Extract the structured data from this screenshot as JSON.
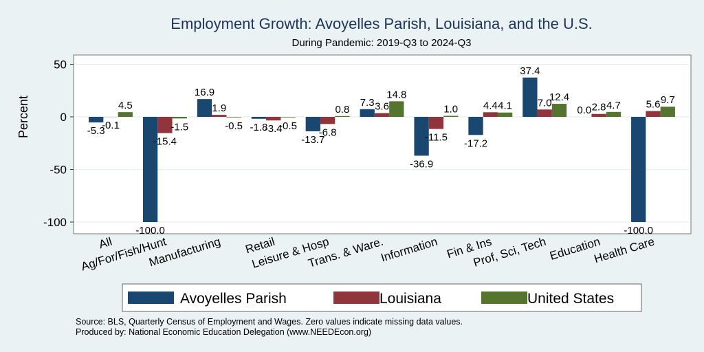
{
  "chart_data": {
    "type": "bar",
    "title": "Employment Growth: Avoyelles Parish, Louisiana, and the U.S.",
    "subtitle": "During Pandemic: 2019-Q3 to 2024-Q3",
    "xlabel": "",
    "ylabel": "Percent",
    "ylim": [
      -110,
      60
    ],
    "yticks": [
      -100,
      -50,
      0,
      50
    ],
    "grid": true,
    "legend_position": "bottom",
    "categories": [
      "All",
      "Ag/For/Fish/Hunt",
      "Manufacturing",
      "Retail",
      "Leisure & Hosp",
      "Trans. & Ware.",
      "Information",
      "Fin & Ins",
      "Prof, Sci, Tech",
      "Education",
      "Health Care"
    ],
    "series": [
      {
        "name": "Avoyelles Parish",
        "color": "#1a476f",
        "values": [
          -5.3,
          -100.0,
          16.9,
          -1.8,
          -13.7,
          7.3,
          -36.9,
          -17.2,
          37.4,
          0.0,
          -100.0
        ]
      },
      {
        "name": "Louisiana",
        "color": "#90353b",
        "values": [
          -0.1,
          -15.4,
          1.9,
          -3.4,
          -6.8,
          3.6,
          -11.5,
          4.4,
          7.0,
          2.8,
          5.6
        ]
      },
      {
        "name": "United States",
        "color": "#55752f",
        "values": [
          4.5,
          -1.5,
          -0.5,
          -0.5,
          0.8,
          14.8,
          1.0,
          4.1,
          12.4,
          4.7,
          9.7
        ]
      }
    ],
    "notes": [
      "Source: BLS, Quarterly Census of Employment and Wages. Zero values indicate missing data values.",
      "Produced by: National Economic Education Delegation (www.NEEDEcon.org)"
    ]
  }
}
